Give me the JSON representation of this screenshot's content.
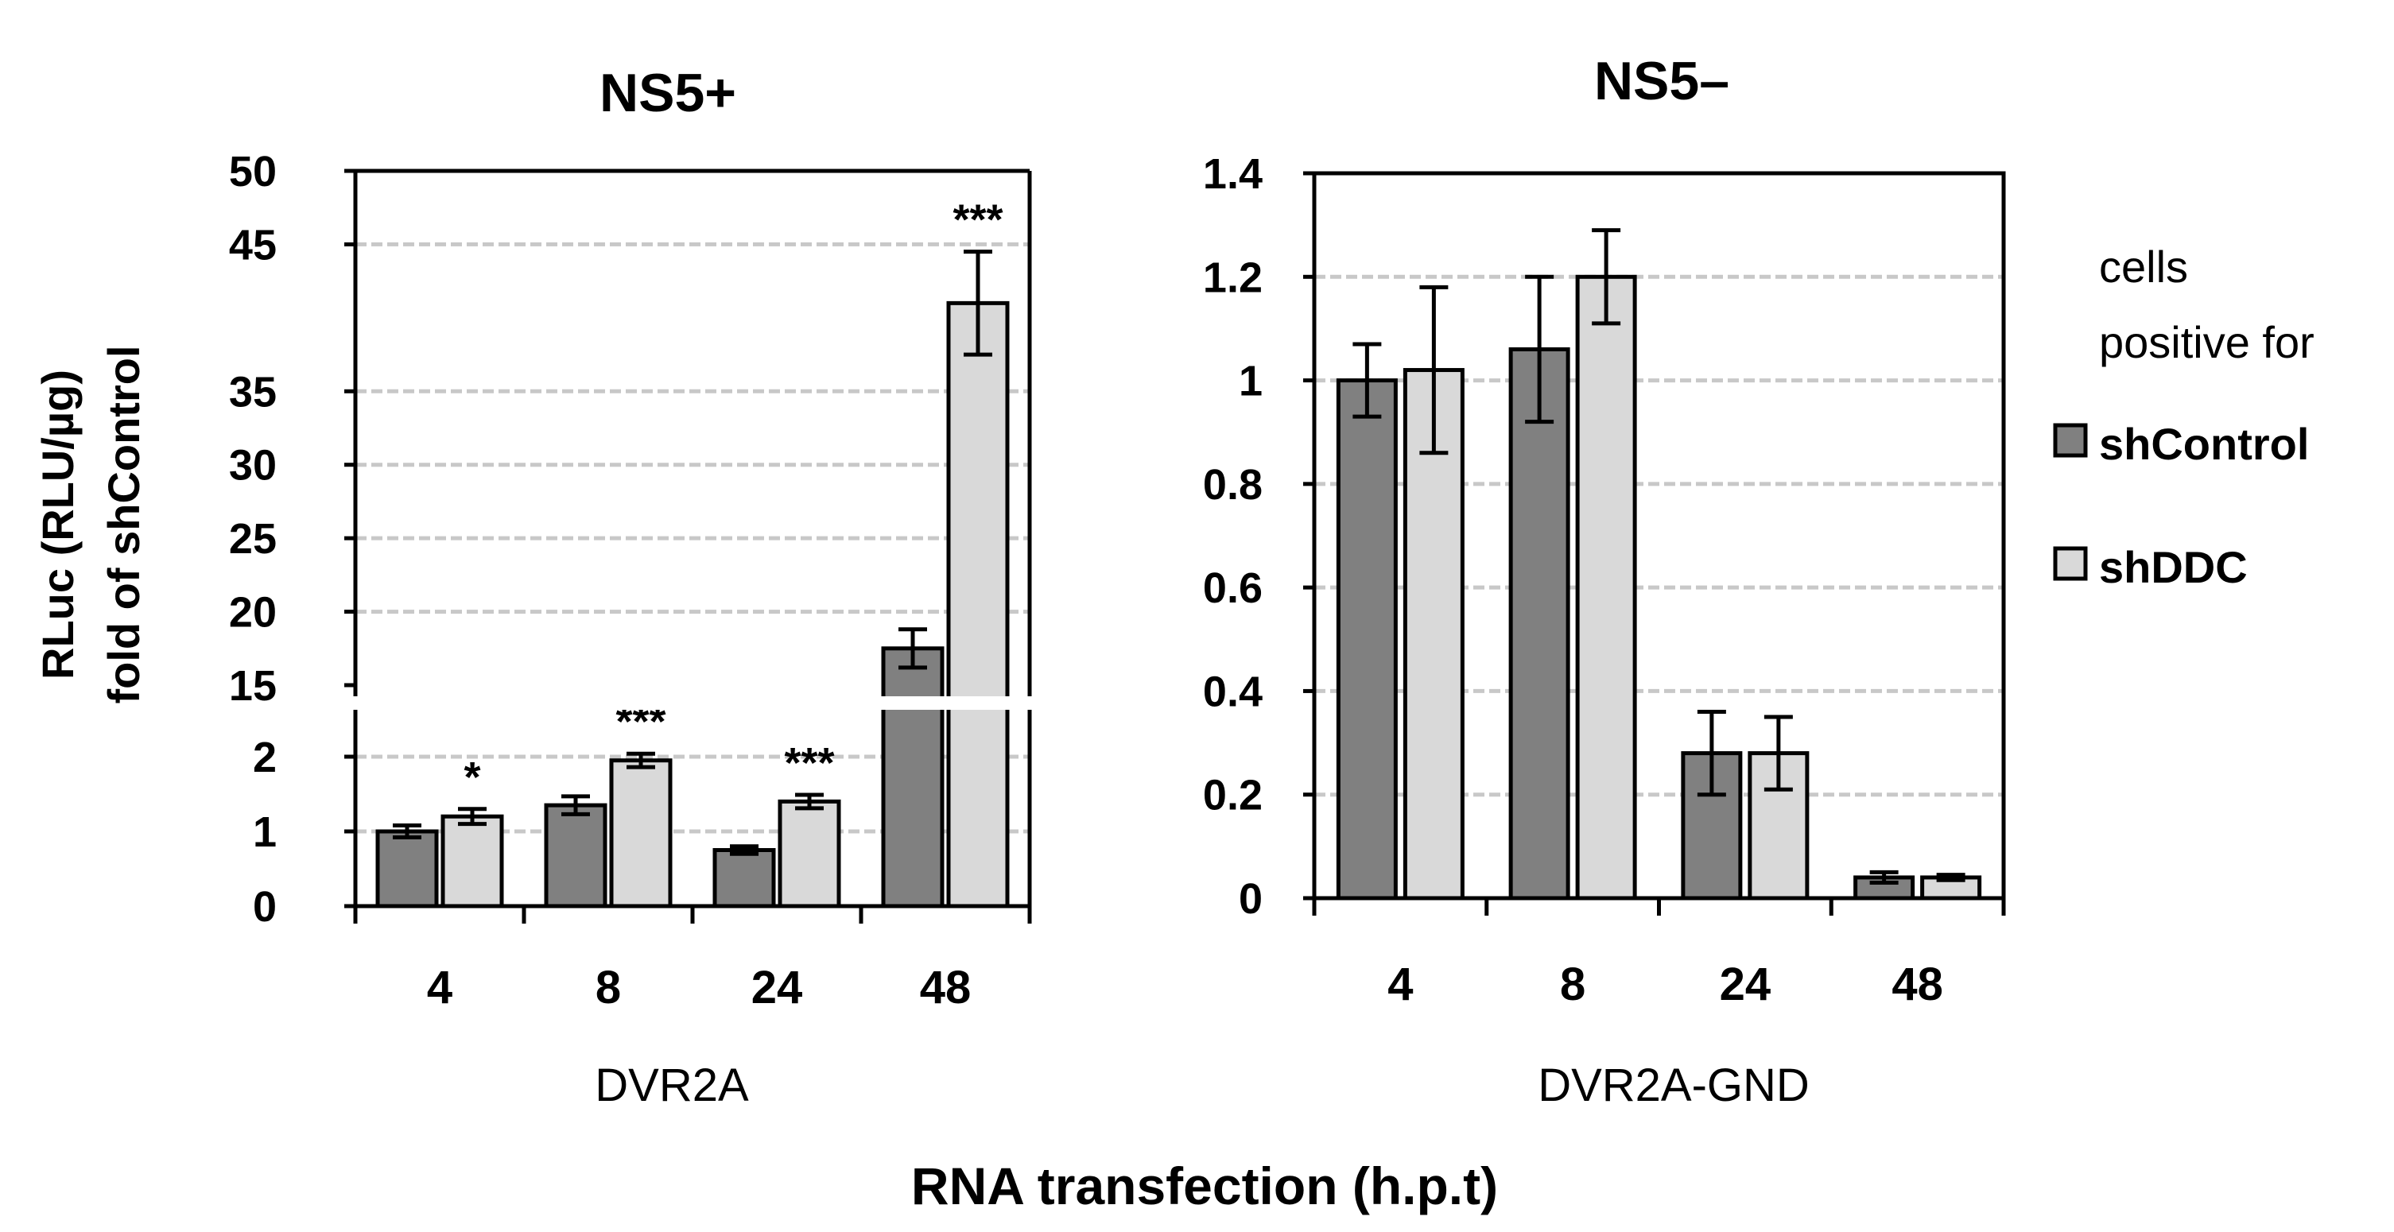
{
  "figure": {
    "ylabel_line1": "RLuc (RLU/µg)",
    "ylabel_line2": "fold of shControl",
    "xlabel": "RNA transfection (h.p.t)",
    "legend": {
      "title_line1": "cells",
      "title_line2": "positive for",
      "items": [
        {
          "label": "shControl",
          "color": "#808080"
        },
        {
          "label": "shDDC",
          "color": "#d9d9d9"
        }
      ]
    }
  },
  "chart_data": [
    {
      "type": "bar",
      "title": "NS5+",
      "group_label": "DVR2A",
      "categories": [
        "4",
        "8",
        "24",
        "48"
      ],
      "y_axis_broken": true,
      "lower_segment": {
        "ylim": [
          0,
          2.5
        ],
        "ticks": [
          "0",
          "1",
          "2"
        ]
      },
      "upper_segment": {
        "ylim": [
          15,
          50
        ],
        "ticks": [
          "15",
          "20",
          "25",
          "30",
          "35",
          "45",
          "50"
        ]
      },
      "series": [
        {
          "name": "shControl",
          "values": [
            1.0,
            1.35,
            0.75,
            17.5
          ],
          "errors": [
            0.08,
            0.12,
            0.05,
            1.3
          ]
        },
        {
          "name": "shDDC",
          "values": [
            1.2,
            1.95,
            1.4,
            41.0
          ],
          "errors": [
            0.1,
            0.09,
            0.09,
            3.5
          ]
        }
      ],
      "significance": [
        "*",
        "***",
        "***",
        "***"
      ]
    },
    {
      "type": "bar",
      "title": "NS5–",
      "group_label": "DVR2A-GND",
      "categories": [
        "4",
        "8",
        "24",
        "48"
      ],
      "ylim": [
        0,
        1.4
      ],
      "ticks": [
        "0",
        "0.2",
        "0.4",
        "0.6",
        "0.8",
        "1",
        "1.2",
        "1.4"
      ],
      "series": [
        {
          "name": "shControl",
          "values": [
            1.0,
            1.06,
            0.28,
            0.04
          ],
          "errors": [
            0.07,
            0.14,
            0.08,
            0.01
          ]
        },
        {
          "name": "shDDC",
          "values": [
            1.02,
            1.2,
            0.28,
            0.04
          ],
          "errors": [
            0.16,
            0.09,
            0.07,
            0.005
          ]
        }
      ]
    }
  ]
}
